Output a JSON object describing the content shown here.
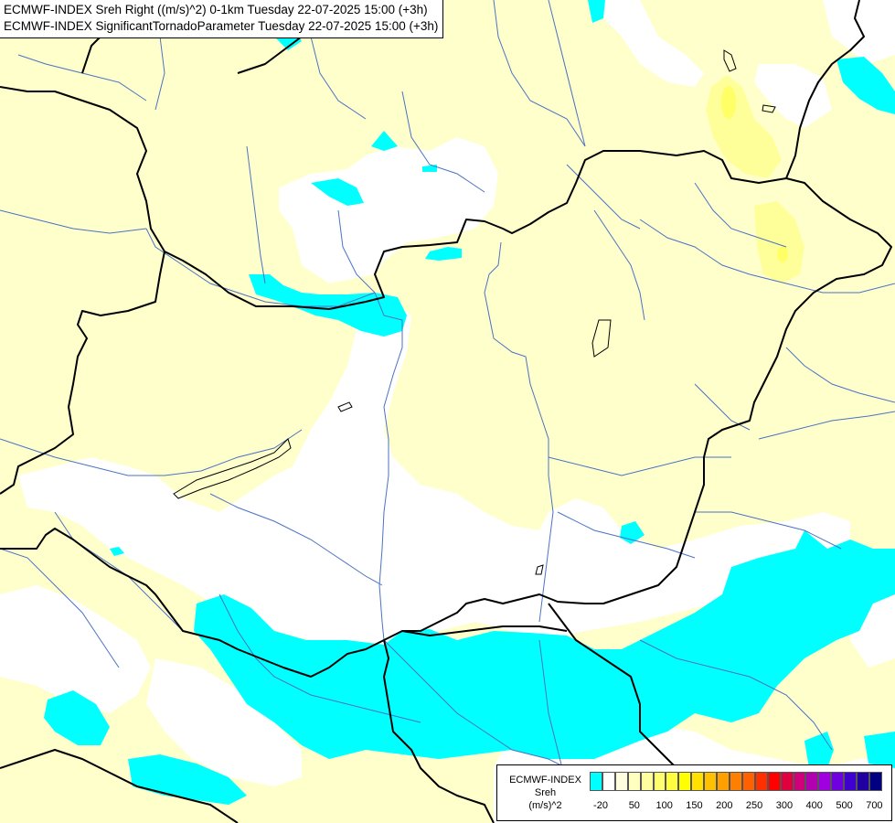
{
  "title": {
    "line1": "ECMWF-INDEX Sreh Right ((m/s)^2) 0-1km Tuesday 22-07-2025 15:00 (+3h)",
    "line2": "ECMWF-INDEX SignificantTornadoParameter Tuesday 22-07-2025 15:00 (+3h)"
  },
  "legend": {
    "model": "ECMWF-INDEX",
    "parameter": "Sreh",
    "unit": "(m/s)^2",
    "colors": [
      "#00ffff",
      "#ffffff",
      "#ffffe0",
      "#ffffc0",
      "#ffffa0",
      "#ffff70",
      "#ffff40",
      "#ffff00",
      "#ffe000",
      "#ffc000",
      "#ffa000",
      "#ff8000",
      "#ff6000",
      "#ff3000",
      "#ff0000",
      "#e00040",
      "#d0007a",
      "#b000b0",
      "#a000e0",
      "#7000e0",
      "#4000d0",
      "#2000a0",
      "#000080"
    ],
    "ticks": [
      {
        "label": "-20",
        "index": 0
      },
      {
        "label": "50",
        "index": 2
      },
      {
        "label": "100",
        "index": 4
      },
      {
        "label": "150",
        "index": 6
      },
      {
        "label": "200",
        "index": 8
      },
      {
        "label": "250",
        "index": 10
      },
      {
        "label": "300",
        "index": 12
      },
      {
        "label": "400",
        "index": 14
      },
      {
        "label": "500",
        "index": 16
      },
      {
        "label": "700",
        "index": 18
      }
    ]
  },
  "map_colors": {
    "background": "#ffffff",
    "low_shear": "#ffffcc",
    "elevated": "#ffff99",
    "negative": "#00ffff",
    "river": "#4a72c4",
    "border": "#000000"
  }
}
